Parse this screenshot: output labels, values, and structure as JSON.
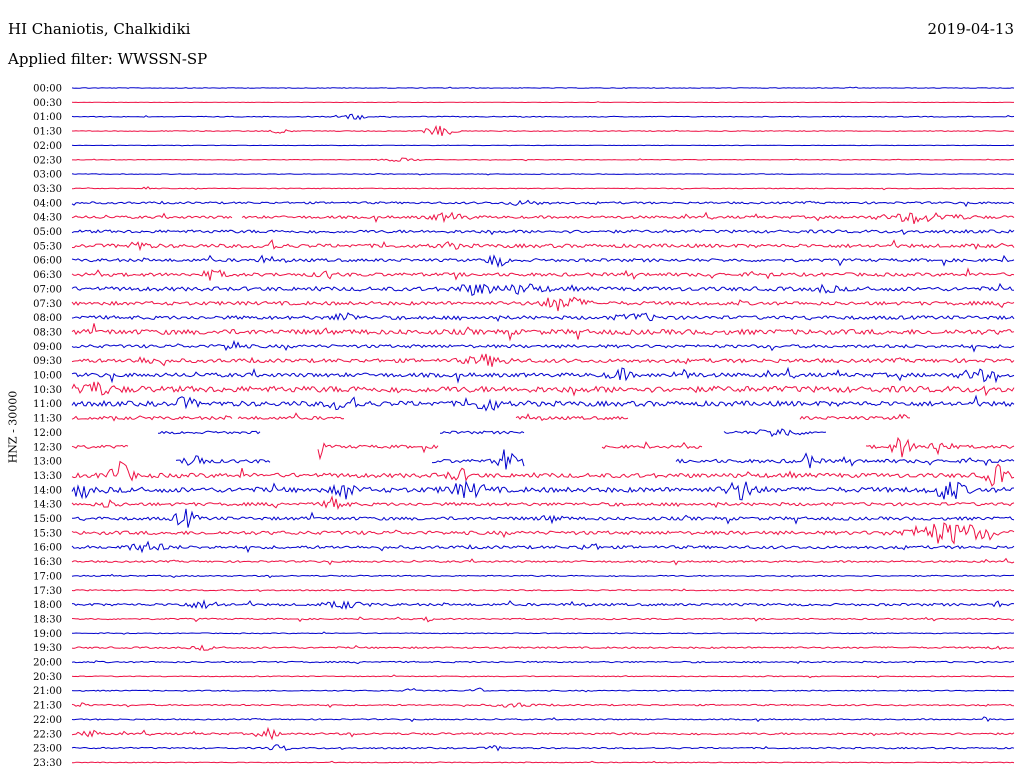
{
  "header": {
    "station": "HI Chaniotis, Chalkidiki",
    "date": "2019-04-13",
    "filter_label": "Applied filter: WWSSN-SP"
  },
  "side_label": "HNZ - 30000",
  "colors": {
    "blue": "#0000cc",
    "red": "#ee1144"
  },
  "chart_data": {
    "type": "line",
    "title": "HI Chaniotis, Chalkidiki",
    "subtitle": "Applied filter: WWSSN-SP",
    "ylabel": "HNZ - 30000",
    "xlabel": "",
    "grid": false,
    "legend": "none",
    "tick_labels": [
      "00:00",
      "00:30",
      "01:00",
      "01:30",
      "02:00",
      "02:30",
      "03:00",
      "03:30",
      "04:00",
      "04:30",
      "05:00",
      "05:30",
      "06:00",
      "06:30",
      "07:00",
      "07:30",
      "08:00",
      "08:30",
      "09:00",
      "09:30",
      "10:00",
      "10:30",
      "11:00",
      "11:30",
      "12:00",
      "12:30",
      "13:00",
      "13:30",
      "14:00",
      "14:30",
      "15:00",
      "15:30",
      "16:00",
      "16:30",
      "17:00",
      "17:30",
      "18:00",
      "18:30",
      "19:00",
      "19:30",
      "20:00",
      "20:30",
      "21:00",
      "21:30",
      "22:00",
      "22:30",
      "23:00",
      "23:30"
    ],
    "rows": [
      {
        "noise": 0.3,
        "events": []
      },
      {
        "noise": 0.2,
        "events": []
      },
      {
        "noise": 0.4,
        "events": [
          [
            0.3,
            3,
            0.01
          ]
        ]
      },
      {
        "noise": 0.4,
        "events": [
          [
            0.39,
            5,
            0.015
          ],
          [
            0.22,
            2,
            0.01
          ]
        ]
      },
      {
        "noise": 0.2,
        "events": []
      },
      {
        "noise": 0.3,
        "events": [
          [
            0.35,
            1.5,
            0.02
          ]
        ]
      },
      {
        "noise": 0.3,
        "events": []
      },
      {
        "noise": 0.4,
        "events": [
          [
            0.08,
            2,
            0.005
          ]
        ]
      },
      {
        "noise": 1.0,
        "events": [
          [
            0.48,
            2,
            0.02
          ]
        ]
      },
      {
        "noise": 1.3,
        "events": [
          [
            0.4,
            3.5,
            0.02
          ],
          [
            0.9,
            4,
            0.04
          ]
        ],
        "gaps": [
          [
            0.17,
            0.18
          ]
        ]
      },
      {
        "noise": 1.5,
        "events": []
      },
      {
        "noise": 1.8,
        "events": [
          [
            0.07,
            4,
            0.01
          ],
          [
            0.21,
            5,
            0.01
          ],
          [
            0.4,
            3,
            0.01
          ]
        ]
      },
      {
        "noise": 1.5,
        "events": [
          [
            0.45,
            6,
            0.01
          ],
          [
            0.2,
            4,
            0.004
          ]
        ]
      },
      {
        "noise": 1.7,
        "events": [
          [
            0.15,
            5,
            0.01
          ],
          [
            0.27,
            3,
            0.01
          ]
        ]
      },
      {
        "noise": 2.0,
        "events": [
          [
            0.43,
            5,
            0.02
          ],
          [
            0.48,
            4,
            0.02
          ],
          [
            0.8,
            3,
            0.01
          ]
        ]
      },
      {
        "noise": 1.8,
        "events": [
          [
            0.52,
            7,
            0.02
          ]
        ]
      },
      {
        "noise": 1.8,
        "events": [
          [
            0.29,
            5,
            0.01
          ],
          [
            0.6,
            3,
            0.02
          ]
        ]
      },
      {
        "noise": 2.5,
        "events": []
      },
      {
        "noise": 1.6,
        "events": [
          [
            0.17,
            5,
            0.01
          ]
        ]
      },
      {
        "noise": 1.9,
        "events": [
          [
            0.08,
            3,
            0.015
          ],
          [
            0.44,
            5,
            0.02
          ]
        ]
      },
      {
        "noise": 2.0,
        "events": [
          [
            0.58,
            6,
            0.01
          ],
          [
            0.65,
            4,
            0.01
          ],
          [
            0.96,
            6,
            0.015
          ]
        ]
      },
      {
        "noise": 3.0,
        "events": [
          [
            0.02,
            6,
            0.02
          ]
        ]
      },
      {
        "noise": 2.5,
        "events": [
          [
            0.12,
            5,
            0.01
          ],
          [
            0.29,
            7,
            0.015
          ],
          [
            0.44,
            8,
            0.01
          ]
        ]
      },
      {
        "noise": 1.6,
        "events": [
          [
            0.88,
            4,
            0.005
          ]
        ],
        "gaps": [
          [
            0.17,
            0.175
          ],
          [
            0.29,
            0.47
          ],
          [
            0.59,
            0.77
          ],
          [
            0.89,
            1.0
          ]
        ]
      },
      {
        "noise": 1.3,
        "events": [
          [
            0.75,
            4,
            0.02
          ]
        ],
        "gaps": [
          [
            0.0,
            0.09
          ],
          [
            0.2,
            0.39
          ],
          [
            0.48,
            0.69
          ],
          [
            0.8,
            1.0
          ]
        ]
      },
      {
        "noise": 1.6,
        "events": [
          [
            0.26,
            8,
            0.006
          ],
          [
            0.88,
            10,
            0.01
          ],
          [
            0.92,
            8,
            0.01
          ]
        ],
        "gaps": [
          [
            0.06,
            0.26
          ],
          [
            0.39,
            0.56
          ],
          [
            0.67,
            0.84
          ]
        ]
      },
      {
        "noise": 1.8,
        "events": [
          [
            0.13,
            10,
            0.008
          ],
          [
            0.46,
            12,
            0.008
          ],
          [
            0.78,
            6,
            0.01
          ]
        ],
        "gaps": [
          [
            0.0,
            0.11
          ],
          [
            0.21,
            0.38
          ],
          [
            0.48,
            0.64
          ]
        ]
      },
      {
        "noise": 2.2,
        "events": [
          [
            0.05,
            12,
            0.012
          ],
          [
            0.41,
            6,
            0.01
          ],
          [
            0.98,
            10,
            0.01
          ]
        ]
      },
      {
        "noise": 2.5,
        "events": [
          [
            0.01,
            8,
            0.008
          ],
          [
            0.29,
            8,
            0.01
          ],
          [
            0.42,
            6,
            0.02
          ],
          [
            0.71,
            9,
            0.015
          ],
          [
            0.93,
            9,
            0.015
          ]
        ]
      },
      {
        "noise": 1.6,
        "events": [
          [
            0.28,
            7,
            0.01
          ],
          [
            0.04,
            3,
            0.01
          ]
        ]
      },
      {
        "noise": 1.6,
        "events": [
          [
            0.12,
            9,
            0.01
          ],
          [
            0.51,
            3,
            0.01
          ]
        ]
      },
      {
        "noise": 1.8,
        "events": [
          [
            0.93,
            10,
            0.04
          ]
        ]
      },
      {
        "noise": 1.5,
        "events": [
          [
            0.08,
            4,
            0.02
          ],
          [
            0.55,
            3,
            0.01
          ]
        ]
      },
      {
        "noise": 0.9,
        "events": []
      },
      {
        "noise": 0.6,
        "events": []
      },
      {
        "noise": 0.6,
        "events": []
      },
      {
        "noise": 1.2,
        "events": [
          [
            0.14,
            3,
            0.02
          ],
          [
            0.29,
            3,
            0.02
          ],
          [
            0.98,
            3,
            0.005
          ]
        ]
      },
      {
        "noise": 0.7,
        "events": [
          [
            0.38,
            3,
            0.005
          ]
        ]
      },
      {
        "noise": 0.4,
        "events": []
      },
      {
        "noise": 0.8,
        "events": [
          [
            0.14,
            2,
            0.01
          ],
          [
            0.98,
            2,
            0.005
          ]
        ]
      },
      {
        "noise": 0.7,
        "events": []
      },
      {
        "noise": 0.4,
        "events": []
      },
      {
        "noise": 0.5,
        "events": [
          [
            0.36,
            3,
            0.005
          ],
          [
            0.43,
            3,
            0.007
          ]
        ]
      },
      {
        "noise": 0.7,
        "events": [
          [
            0.01,
            2,
            0.005
          ],
          [
            0.47,
            2,
            0.02
          ]
        ]
      },
      {
        "noise": 0.6,
        "events": [
          [
            0.97,
            3,
            0.005
          ]
        ]
      },
      {
        "noise": 1.0,
        "events": [
          [
            0.21,
            5,
            0.008
          ],
          [
            0.02,
            3,
            0.01
          ]
        ]
      },
      {
        "noise": 0.7,
        "events": [
          [
            0.22,
            3,
            0.01
          ],
          [
            0.45,
            2,
            0.01
          ]
        ]
      },
      {
        "noise": 0.4,
        "events": []
      }
    ]
  }
}
